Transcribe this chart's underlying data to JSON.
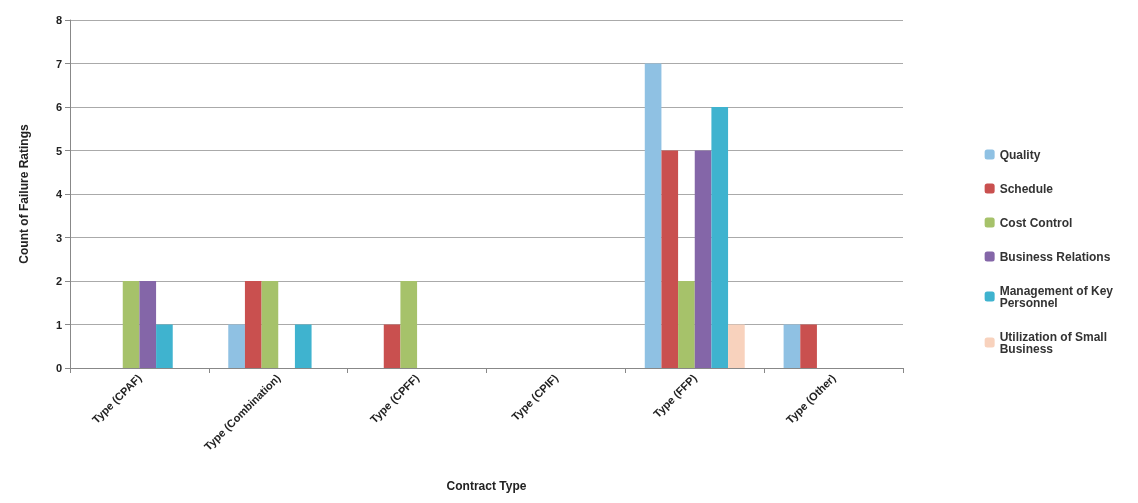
{
  "chart_data": {
    "type": "bar",
    "xlabel": "Contract Type",
    "ylabel": "Count of Failure Ratings",
    "categories": [
      "Type (CPAF)",
      "Type (Combination)",
      "Type (CPFF)",
      "Type (CPIF)",
      "Type (FFP)",
      "Type (Other)"
    ],
    "series": [
      {
        "name": "Quality",
        "color": "#8fc1e3",
        "values": [
          0,
          1,
          0,
          0,
          7,
          1
        ]
      },
      {
        "name": "Schedule",
        "color": "#c9504f",
        "values": [
          0,
          2,
          1,
          0,
          5,
          1
        ]
      },
      {
        "name": "Cost Control",
        "color": "#a6c26a",
        "values": [
          2,
          2,
          2,
          0,
          2,
          0
        ]
      },
      {
        "name": "Business Relations",
        "color": "#8466a8",
        "values": [
          2,
          0,
          0,
          0,
          5,
          0
        ]
      },
      {
        "name": "Management of Key Personnel",
        "color": "#3fb3cf",
        "values": [
          1,
          1,
          0,
          0,
          6,
          0
        ]
      },
      {
        "name": "Utilization of Small Business",
        "color": "#f8d2bd",
        "values": [
          0,
          0,
          0,
          0,
          1,
          0
        ]
      }
    ],
    "ylim": [
      0,
      8
    ],
    "yticks": [
      0,
      1,
      2,
      3,
      4,
      5,
      6,
      7,
      8
    ],
    "grid": "y",
    "legend": "right"
  }
}
